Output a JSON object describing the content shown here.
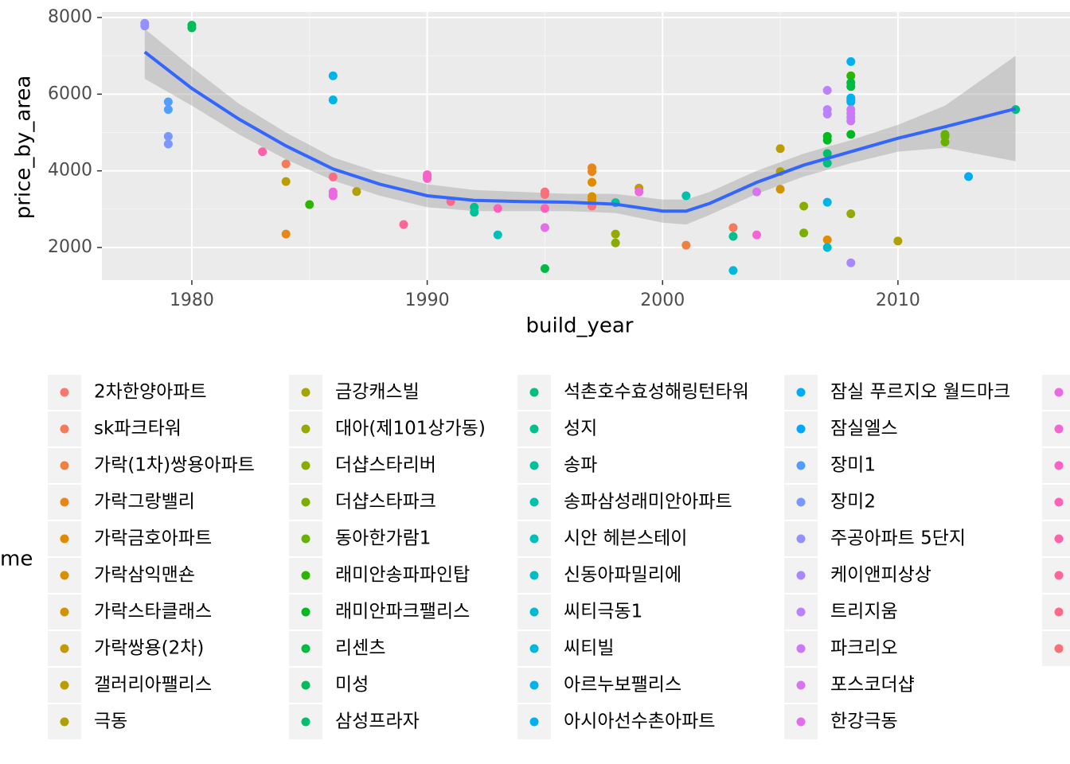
{
  "chart_data": {
    "type": "scatter",
    "x_label": "build_year",
    "y_label": "price_by_area",
    "legend_title": "me",
    "xlim": [
      1976.18,
      2017.31
    ],
    "ylim": [
      1149,
      8145
    ],
    "xticks": [
      1980,
      1990,
      2000,
      2010
    ],
    "yticks": [
      2000,
      4000,
      6000,
      8000
    ],
    "xminor": [
      1985,
      1995,
      2005,
      2015
    ],
    "yminor": [
      3000,
      5000,
      7000
    ],
    "grid": true,
    "smooth": {
      "color": "#3366FF",
      "band_color": "#999999",
      "x": [
        1978,
        1980,
        1982,
        1984,
        1986,
        1988,
        1990,
        1992,
        1994,
        1996,
        1998,
        2000,
        2001,
        2002,
        2004,
        2006,
        2008,
        2010,
        2012,
        2015
      ],
      "y": [
        7100,
        6150,
        5350,
        4650,
        4050,
        3650,
        3350,
        3230,
        3200,
        3180,
        3130,
        2950,
        2950,
        3150,
        3700,
        4150,
        4500,
        4850,
        5150,
        5620
      ],
      "ymin": [
        6400,
        5700,
        4950,
        4300,
        3750,
        3350,
        3050,
        2950,
        2950,
        2950,
        2900,
        2650,
        2600,
        2850,
        3400,
        3850,
        4200,
        4500,
        4600,
        4250
      ],
      "ymax": [
        7700,
        6700,
        5750,
        5000,
        4350,
        3950,
        3650,
        3500,
        3450,
        3400,
        3400,
        3250,
        3250,
        3450,
        4000,
        4450,
        4800,
        5200,
        5700,
        7000
      ]
    },
    "series": [
      {
        "name": "2차한양아파트",
        "color": "#F8766D",
        "x": [],
        "y": []
      },
      {
        "name": "sk파크타워",
        "color": "#F37B59",
        "x": [
          1984,
          2003
        ],
        "y": [
          4180,
          2520
        ]
      },
      {
        "name": "가락(1차)쌍용아파트",
        "color": "#ED8141",
        "x": [
          2001
        ],
        "y": [
          2060
        ]
      },
      {
        "name": "가락그랑밸리",
        "color": "#E7861B",
        "x": [
          1984,
          1997,
          1997
        ],
        "y": [
          2350,
          4080,
          3980
        ]
      },
      {
        "name": "가락금호아파트",
        "color": "#E08B00",
        "x": [
          1997,
          2007
        ],
        "y": [
          3700,
          2200
        ]
      },
      {
        "name": "가락삼익맨숀",
        "color": "#D89000",
        "x": [
          1997,
          1997,
          1997
        ],
        "y": [
          3330,
          3250,
          3150
        ]
      },
      {
        "name": "가락스타클래스",
        "color": "#CF9400",
        "x": [
          2005
        ],
        "y": [
          3520
        ]
      },
      {
        "name": "가락쌍용(2차)",
        "color": "#C59900",
        "x": [
          1999
        ],
        "y": [
          3550
        ]
      },
      {
        "name": "갤러리아팰리스",
        "color": "#BB9D00",
        "x": [
          1984,
          2005
        ],
        "y": [
          3720,
          4580
        ]
      },
      {
        "name": "극동",
        "color": "#B0A100",
        "x": [
          1987,
          2010,
          2005
        ],
        "y": [
          3460,
          2170,
          3980
        ]
      },
      {
        "name": "금강캐스빌",
        "color": "#A3A500",
        "x": [],
        "y": []
      },
      {
        "name": "대아(제101상가동)",
        "color": "#96A900",
        "x": [
          1998,
          2008
        ],
        "y": [
          2350,
          2880
        ]
      },
      {
        "name": "더샵스타리버",
        "color": "#88AC00",
        "x": [
          1998,
          2006
        ],
        "y": [
          2120,
          3080
        ]
      },
      {
        "name": "더샵스타파크",
        "color": "#79AF00",
        "x": [
          2006
        ],
        "y": [
          2380
        ]
      },
      {
        "name": "동아한가람1",
        "color": "#67B200",
        "x": [
          2012,
          2012,
          2012
        ],
        "y": [
          4950,
          4900,
          4750
        ]
      },
      {
        "name": "래미안송파파인탑",
        "color": "#2DB600",
        "x": [
          1985,
          2008
        ],
        "y": [
          3120,
          6480
        ]
      },
      {
        "name": "래미안파크팰리스",
        "color": "#00B81F",
        "x": [
          2007,
          2007,
          2008
        ],
        "y": [
          4900,
          4800,
          4950
        ]
      },
      {
        "name": "리센츠",
        "color": "#00BA42",
        "x": [
          1995,
          2008,
          2008
        ],
        "y": [
          1450,
          6300,
          6200
        ]
      },
      {
        "name": "미성",
        "color": "#00BC59",
        "x": [
          1980,
          1980
        ],
        "y": [
          7800,
          7730
        ]
      },
      {
        "name": "삼성프라자",
        "color": "#00BE6C",
        "x": [
          2007
        ],
        "y": [
          4450
        ]
      },
      {
        "name": "석촌호수효성해링턴타워",
        "color": "#00BF7D",
        "x": [
          2015,
          2007
        ],
        "y": [
          5600,
          4200
        ]
      },
      {
        "name": "성지",
        "color": "#00C08D",
        "x": [
          1992,
          2003
        ],
        "y": [
          3050,
          2290
        ]
      },
      {
        "name": "송파",
        "color": "#00C19C",
        "x": [
          1992,
          1998
        ],
        "y": [
          2920,
          3170
        ]
      },
      {
        "name": "송파삼성래미안아파트",
        "color": "#00C1AA",
        "x": [
          2001
        ],
        "y": [
          3350
        ]
      },
      {
        "name": "시안 헤븐스테이",
        "color": "#00BFB7",
        "x": [
          1993
        ],
        "y": [
          2330
        ]
      },
      {
        "name": "신동아파밀리에",
        "color": "#00BDC4",
        "x": [],
        "y": []
      },
      {
        "name": "씨티극동1",
        "color": "#00BBD0",
        "x": [
          2007
        ],
        "y": [
          2000
        ]
      },
      {
        "name": "씨티빌",
        "color": "#00B8DC",
        "x": [
          2003
        ],
        "y": [
          1400
        ]
      },
      {
        "name": "아르누보팰리스",
        "color": "#00B4E7",
        "x": [
          1986,
          1986,
          2007
        ],
        "y": [
          6480,
          5850,
          3180
        ]
      },
      {
        "name": "아시아선수촌아파트",
        "color": "#00B0F0",
        "x": [
          2008,
          2008,
          2008,
          2008
        ],
        "y": [
          6850,
          5900,
          5850,
          5800
        ]
      },
      {
        "name": "잠실 푸르지오 월드마크",
        "color": "#00ABF9",
        "x": [
          2013
        ],
        "y": [
          3850
        ]
      },
      {
        "name": "잠실엘스",
        "color": "#00A6FF",
        "x": [],
        "y": []
      },
      {
        "name": "장미1",
        "color": "#529EFF",
        "x": [
          1979,
          1979
        ],
        "y": [
          5800,
          5600
        ]
      },
      {
        "name": "장미2",
        "color": "#7C96FF",
        "x": [
          1979,
          1979
        ],
        "y": [
          4900,
          4700
        ]
      },
      {
        "name": "주공아파트 5단지",
        "color": "#9590FF",
        "x": [
          1978,
          1978
        ],
        "y": [
          7850,
          7780
        ]
      },
      {
        "name": "케이앤피상상",
        "color": "#A988FF",
        "x": [
          2008
        ],
        "y": [
          1600
        ]
      },
      {
        "name": "트리지움",
        "color": "#BB81FF",
        "x": [
          2007,
          2007,
          2007
        ],
        "y": [
          6100,
          5600,
          5480
        ]
      },
      {
        "name": "파크리오",
        "color": "#CA7AF9",
        "x": [
          2008,
          2008,
          2008,
          2008
        ],
        "y": [
          5600,
          5500,
          5400,
          5300
        ]
      },
      {
        "name": "포스코더샵",
        "color": "#D774F2",
        "x": [
          2004
        ],
        "y": [
          3450
        ]
      },
      {
        "name": "한강극동",
        "color": "#E36EE9",
        "x": [
          1995
        ],
        "y": [
          2520
        ]
      },
      {
        "name": null,
        "color": "#EC69DF",
        "x": [
          1986,
          1986,
          1986,
          1999
        ],
        "y": [
          3450,
          3380,
          3350,
          3450
        ]
      },
      {
        "name": null,
        "color": "#F464D3",
        "x": [
          2004
        ],
        "y": [
          2330
        ]
      },
      {
        "name": null,
        "color": "#FA62C6",
        "x": [
          1990,
          1990,
          1990
        ],
        "y": [
          3900,
          3850,
          3800
        ]
      },
      {
        "name": null,
        "color": "#FE61B8",
        "x": [
          1993,
          1995
        ],
        "y": [
          3020,
          3020
        ]
      },
      {
        "name": null,
        "color": "#FF62A9",
        "x": [
          1983
        ],
        "y": [
          4500
        ]
      },
      {
        "name": null,
        "color": "#FF6599",
        "x": [
          1989
        ],
        "y": [
          2600
        ]
      },
      {
        "name": null,
        "color": "#FD6A89",
        "x": [
          1991,
          1986
        ],
        "y": [
          3200,
          3840
        ]
      },
      {
        "name": null,
        "color": "#F97079",
        "x": [
          1995,
          1995,
          1997
        ],
        "y": [
          3450,
          3380,
          3080
        ]
      }
    ]
  }
}
